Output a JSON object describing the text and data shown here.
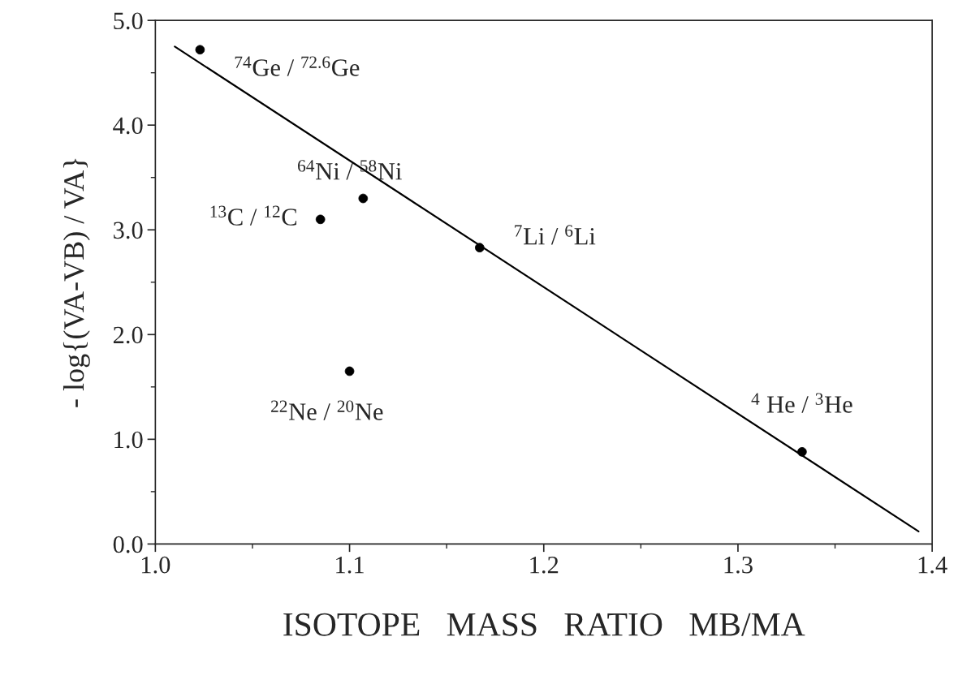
{
  "chart_data": {
    "type": "scatter",
    "xlabel": "ISOTOPE   MASS   RATIO   MB/MA",
    "ylabel": "- log{(VA-VB) / VA}",
    "series": [
      {
        "color": "#000000",
        "marker": "circle",
        "x": [
          1.023,
          1.085,
          1.107,
          1.1,
          1.167,
          1.333
        ],
        "values": [
          4.72,
          3.1,
          3.3,
          1.65,
          2.83,
          0.88
        ]
      },
      {
        "type": "line",
        "color": "#000000",
        "marker": "none",
        "line_style": "solid",
        "x": [
          1.01,
          1.393
        ],
        "values": [
          4.75,
          0.12
        ]
      }
    ],
    "annotations": [
      {
        "text": "$^{74}$Ge / $^{72.6}$Ge",
        "x": 1.023,
        "y": 4.72
      },
      {
        "text": "$^{13}$C / $^{12}$C",
        "x": 1.085,
        "y": 3.1
      },
      {
        "text": "$^{64}$Ni / $^{58}$Ni",
        "x": 1.107,
        "y": 3.3
      },
      {
        "text": "$^{22}$Ne / $^{20}$Ne",
        "x": 1.1,
        "y": 1.65
      },
      {
        "text": "$^{7}$Li / $^{6}$Li",
        "x": 1.167,
        "y": 2.83
      },
      {
        "text": "$^{4}$ He / $^{3}$He",
        "x": 1.333,
        "y": 0.88
      }
    ],
    "xlim": [
      1.0,
      1.4
    ],
    "ylim": [
      0.0,
      5.0
    ],
    "xticks": [
      {
        "value": 1.0,
        "label": "1.0"
      },
      1.1,
      1.2,
      1.3,
      1.4
    ],
    "yticks": [
      {
        "value": 0.0,
        "label": "0.0"
      },
      {
        "value": 1.0,
        "label": "1.0"
      },
      {
        "value": 2.0,
        "label": "2.0"
      },
      {
        "value": 3.0,
        "label": "3.0"
      },
      {
        "value": 4.0,
        "label": "4.0"
      },
      {
        "value": 5.0,
        "label": "5.0"
      }
    ],
    "grid": false,
    "legend": false
  }
}
